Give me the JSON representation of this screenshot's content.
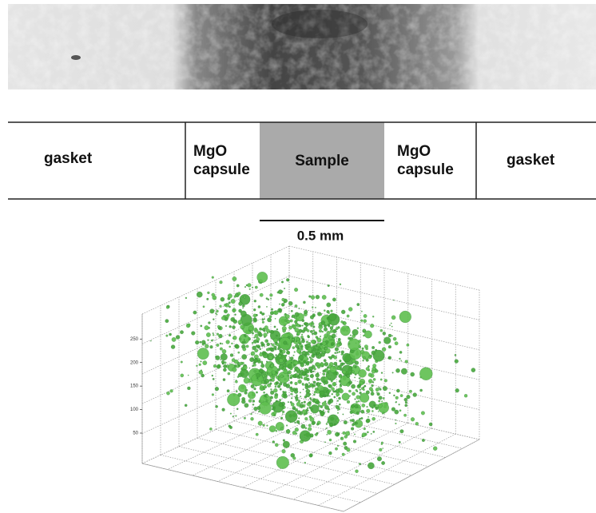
{
  "schematic": {
    "regions": [
      "gasket",
      "MgO capsule",
      "Sample",
      "MgO capsule",
      "gasket"
    ]
  },
  "scale_bar": {
    "label": "0.5 mm"
  },
  "plot_3d": {
    "z_ticks": [
      250,
      200,
      150,
      100,
      50
    ]
  }
}
